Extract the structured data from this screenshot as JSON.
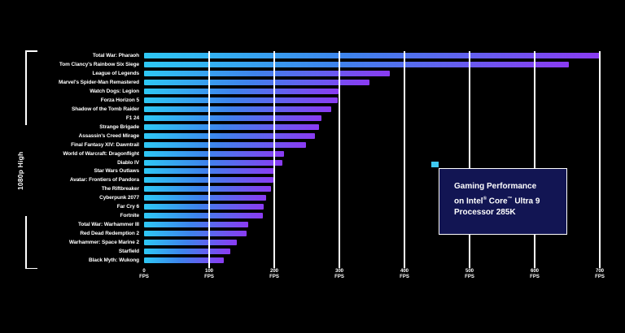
{
  "y_group_label": "1080p High",
  "chart_data": {
    "type": "bar",
    "orientation": "horizontal",
    "title": "Gaming Performance on Intel Core Ultra 9 Processor 285K",
    "settings_group": "1080p High",
    "unit": "FPS",
    "categories": [
      "Total War: Pharaoh",
      "Tom Clancy's Rainbow Six Siege",
      "League of Legends",
      "Marvel's Spider-Man Remastered",
      "Watch Dogs: Legion",
      "Forza Horizon 5",
      "Shadow of the Tomb Raider",
      "F1 24",
      "Strange Brigade",
      "Assassin's Creed Mirage",
      "Final Fantasy XIV: Dawntrail",
      "World of Warcraft: Dragonflight",
      "Diablo IV",
      "Star Wars Outlaws",
      "Avatar: Frontiers of Pandora",
      "The Riftbreaker",
      "Cyberpunk 2077",
      "Far Cry 6",
      "Fortnite",
      "Total War: Warhammer III",
      "Red Dead Redemption 2",
      "Warhammer: Space Marine 2",
      "Starfield",
      "Black Myth: Wukong"
    ],
    "values": [
      700,
      653,
      378,
      346,
      299,
      297,
      287,
      273,
      269,
      263,
      249,
      215,
      212,
      200,
      199,
      195,
      188,
      184,
      182,
      160,
      157,
      143,
      133,
      122
    ],
    "x_axis": {
      "ticks": [
        0,
        100,
        200,
        300,
        400,
        500,
        600,
        700
      ],
      "unit_suffix": "FPS",
      "range": [
        0,
        740
      ],
      "grid": "on"
    },
    "legend": {
      "position": "right-middle",
      "swatch_color": "#3EC8F0",
      "line1": "Gaming Performance",
      "line2_parts": [
        "on Intel",
        "®",
        " Core",
        "™",
        " Ultra 9"
      ],
      "line3": "Processor 285K"
    },
    "colors": {
      "bar_gradient_start": "#2EC8F4",
      "bar_gradient_mid": "#3E83EC",
      "bar_gradient_end": "#8A3BF2",
      "gridline": "#FFFFFF",
      "text": "#FFFFFF",
      "legend_box_bg": "#121553",
      "legend_box_border": "#FFFFFF"
    }
  }
}
